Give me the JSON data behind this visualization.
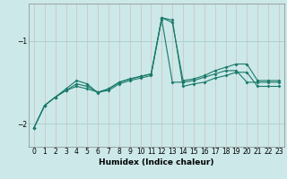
{
  "xlabel": "Humidex (Indice chaleur)",
  "bg_color": "#cce8e8",
  "grid_color": "#aacccc",
  "line_color": "#1a7a6a",
  "xlim": [
    -0.5,
    23.5
  ],
  "ylim": [
    -2.28,
    -0.55
  ],
  "yticks": [
    -2,
    -1
  ],
  "xticks": [
    0,
    1,
    2,
    3,
    4,
    5,
    6,
    7,
    8,
    9,
    10,
    11,
    12,
    13,
    14,
    15,
    16,
    17,
    18,
    19,
    20,
    21,
    22,
    23
  ],
  "line1_x": [
    0,
    1,
    2,
    3,
    4,
    5,
    6,
    7,
    8,
    9,
    10,
    11,
    12,
    13,
    14,
    15,
    16,
    17,
    18,
    19,
    20,
    21,
    22,
    23
  ],
  "line1_y": [
    -2.05,
    -1.78,
    -1.68,
    -1.6,
    -1.55,
    -1.58,
    -1.62,
    -1.6,
    -1.52,
    -1.48,
    -1.45,
    -1.42,
    -0.72,
    -0.75,
    -1.55,
    -1.52,
    -1.5,
    -1.45,
    -1.42,
    -1.38,
    -1.38,
    -1.55,
    -1.55,
    -1.55
  ],
  "line2_x": [
    0,
    1,
    2,
    3,
    4,
    5,
    6,
    7,
    8,
    9,
    10,
    11,
    12,
    13,
    14,
    15,
    16,
    17,
    18,
    19,
    20,
    21,
    22,
    23
  ],
  "line2_y": [
    -2.05,
    -1.78,
    -1.68,
    -1.58,
    -1.48,
    -1.52,
    -1.63,
    -1.58,
    -1.5,
    -1.46,
    -1.43,
    -1.4,
    -0.72,
    -0.78,
    -1.48,
    -1.46,
    -1.42,
    -1.36,
    -1.32,
    -1.28,
    -1.28,
    -1.48,
    -1.48,
    -1.48
  ],
  "line3_x": [
    0,
    1,
    2,
    3,
    4,
    5,
    6,
    7,
    8,
    9,
    10,
    11,
    12,
    13,
    14,
    15,
    16,
    17,
    18,
    19,
    20,
    21,
    22,
    23
  ],
  "line3_y": [
    -2.05,
    -1.78,
    -1.68,
    -1.6,
    -1.52,
    -1.55,
    -1.62,
    -1.58,
    -1.5,
    -1.46,
    -1.43,
    -1.4,
    -0.74,
    -1.5,
    -1.5,
    -1.48,
    -1.44,
    -1.4,
    -1.36,
    -1.36,
    -1.5,
    -1.5,
    -1.5,
    -1.5
  ]
}
